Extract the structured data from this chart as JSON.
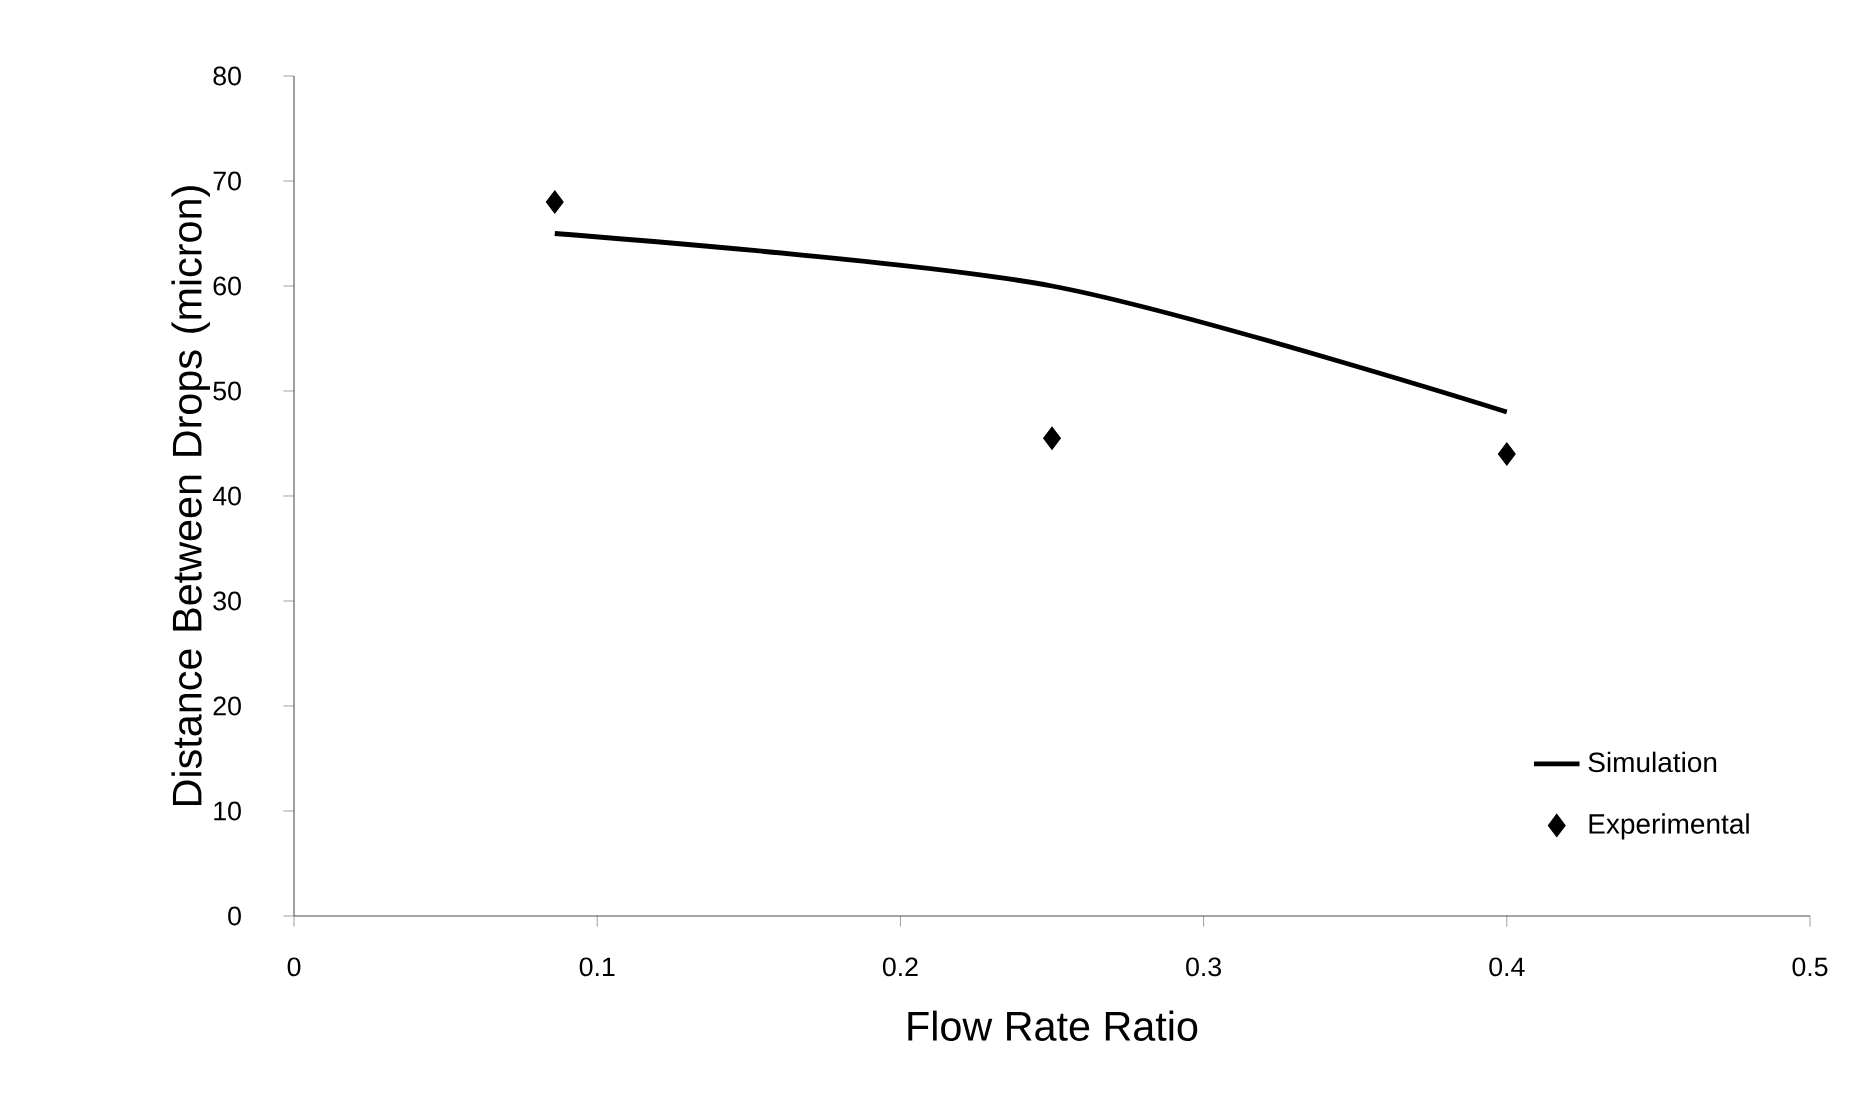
{
  "chart_data": {
    "type": "line",
    "xlabel": "Flow Rate Ratio",
    "ylabel": "Distance Between Drops (micron)",
    "xlim": [
      0,
      0.5
    ],
    "xticks": [
      0,
      0.1,
      0.2,
      0.3,
      0.4,
      0.5
    ],
    "ylim": [
      0,
      80
    ],
    "yticks": [
      0,
      10,
      20,
      30,
      40,
      50,
      60,
      70,
      80
    ],
    "legend": "bottom right",
    "series": [
      {
        "name": "Simulation",
        "color": "#000000",
        "marker": "none",
        "x": [
          0.086,
          0.25,
          0.4
        ],
        "values": [
          65,
          60,
          48
        ]
      },
      {
        "name": "Experimental",
        "type": "scatter",
        "color": "#000000",
        "marker": "diamond",
        "x": [
          0.086,
          0.25,
          0.4
        ],
        "values": [
          68,
          45.5,
          44
        ]
      }
    ]
  }
}
